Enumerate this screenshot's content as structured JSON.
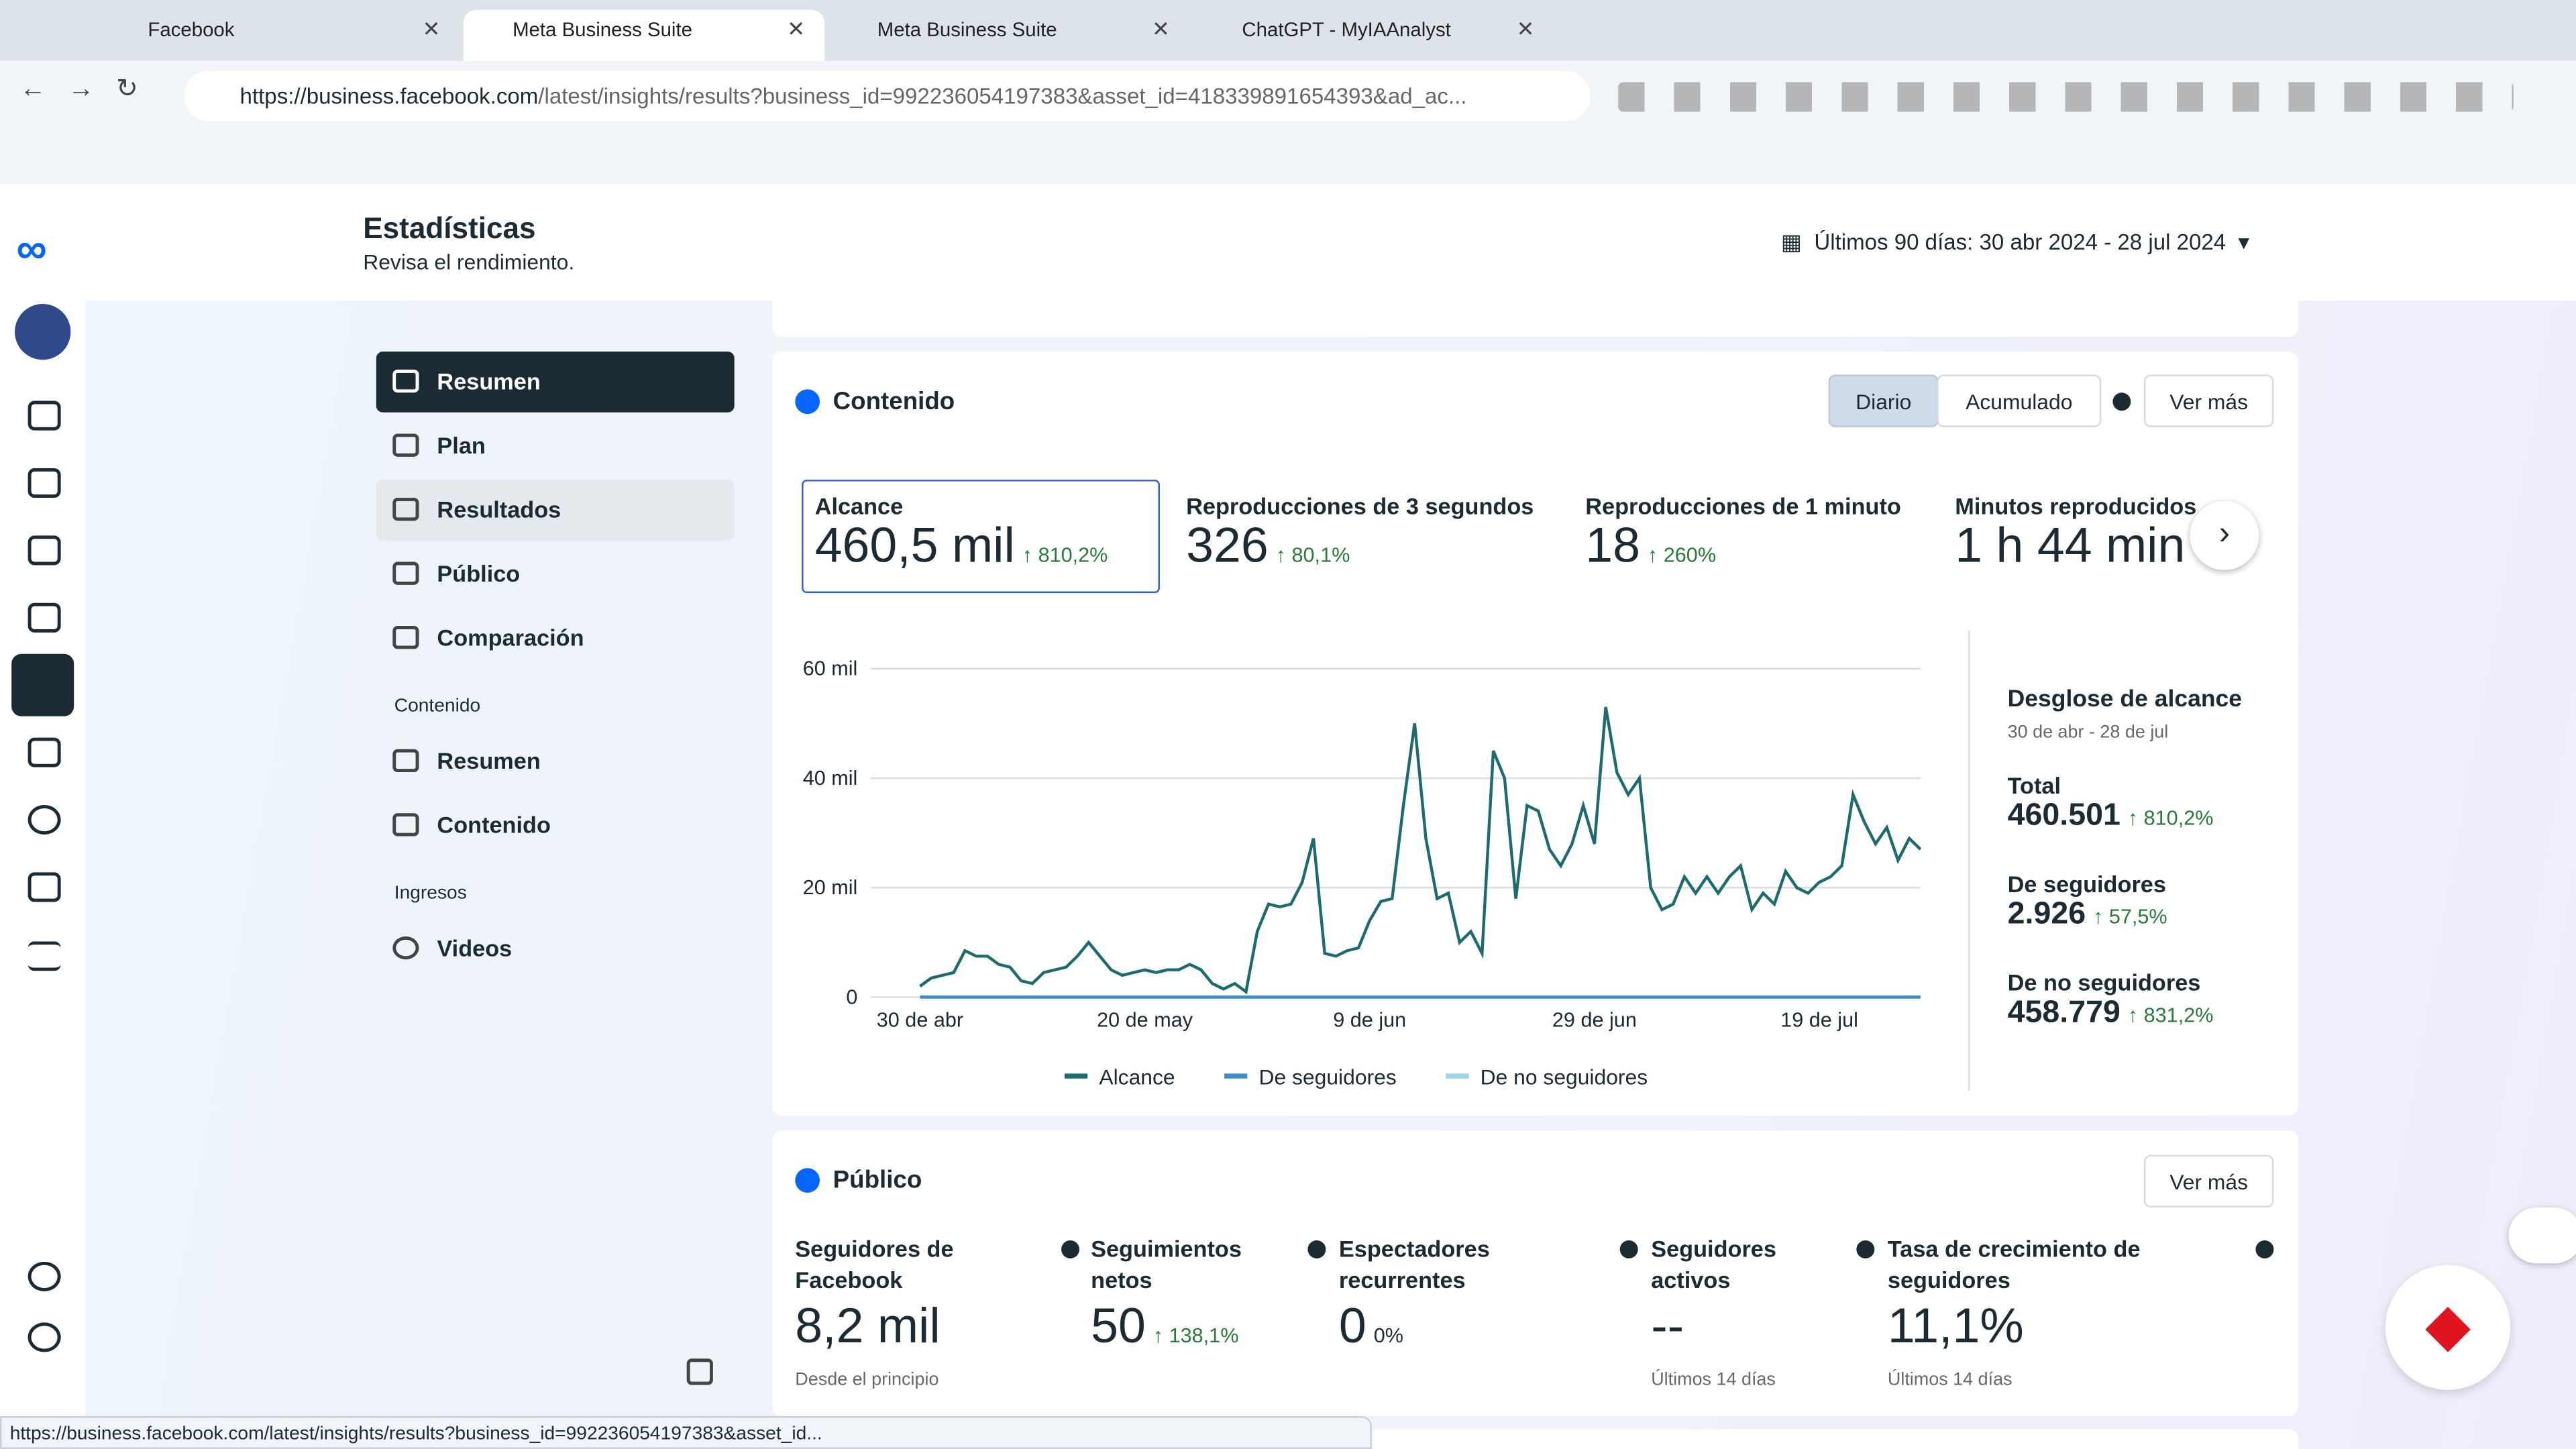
{
  "browser": {
    "tabs": [
      "Facebook",
      "Meta Business Suite",
      "Meta Business Suite",
      "ChatGPT - MyIAAnalyst"
    ],
    "url_host": "https://business.facebook.com",
    "url_path": "/latest/insights/results?business_id=992236054197383&asset_id=418339891654393&ad_ac...",
    "status_url": "https://business.facebook.com/latest/insights/results?business_id=992236054197383&asset_id..."
  },
  "header": {
    "title": "Estadísticas",
    "subtitle": "Revisa el rendimiento.",
    "date_range": "Últimos 90 días: 30 abr 2024 - 28 jul 2024"
  },
  "nav": {
    "items": [
      "Resumen",
      "Plan",
      "Resultados",
      "Público",
      "Comparación"
    ],
    "sections": [
      {
        "title": "Contenido",
        "items": [
          "Resumen",
          "Contenido"
        ]
      },
      {
        "title": "Ingresos",
        "items": [
          "Videos"
        ]
      }
    ]
  },
  "content_card": {
    "title": "Contenido",
    "toggles": [
      "Diario",
      "Acumulado"
    ],
    "more": "Ver más",
    "metrics": [
      {
        "label": "Alcance",
        "value": "460,5 mil",
        "change": "810,2%"
      },
      {
        "label": "Reproducciones de 3 segundos",
        "value": "326",
        "change": "80,1%"
      },
      {
        "label": "Reproducciones de 1 minuto",
        "value": "18",
        "change": "260%"
      },
      {
        "label": "Minutos reproducidos",
        "value": "1 h 44 min"
      }
    ],
    "breakdown": {
      "title": "Desglose de alcance",
      "subtitle": "30 de abr - 28 de jul",
      "items": [
        {
          "label": "Total",
          "value": "460.501",
          "change": "810,2%"
        },
        {
          "label": "De seguidores",
          "value": "2.926",
          "change": "57,5%"
        },
        {
          "label": "De no seguidores",
          "value": "458.779",
          "change": "831,2%"
        }
      ]
    }
  },
  "chart_data": {
    "type": "line",
    "categories": [
      "30 de abr",
      null,
      null,
      null,
      null,
      null,
      null,
      null,
      null,
      null,
      null,
      null,
      null,
      null,
      null,
      null,
      null,
      null,
      null,
      null,
      "20 de may",
      null,
      null,
      null,
      null,
      null,
      null,
      null,
      null,
      null,
      null,
      null,
      null,
      null,
      null,
      null,
      null,
      null,
      null,
      null,
      "9 de jun",
      null,
      null,
      null,
      null,
      null,
      null,
      null,
      null,
      null,
      null,
      null,
      null,
      null,
      null,
      null,
      null,
      null,
      null,
      null,
      "29 de jun",
      null,
      null,
      null,
      null,
      null,
      null,
      null,
      null,
      null,
      null,
      null,
      null,
      null,
      null,
      null,
      null,
      null,
      null,
      null,
      "19 de jul",
      null,
      null,
      null,
      null,
      null,
      null,
      null,
      null,
      null
    ],
    "series": [
      {
        "name": "Alcance",
        "color": "#1d6b6e",
        "values": [
          2000,
          3500,
          4000,
          4500,
          8500,
          7500,
          7500,
          6000,
          5500,
          3000,
          2500,
          4500,
          5000,
          5500,
          7500,
          10000,
          7500,
          5000,
          4000,
          4500,
          5000,
          4500,
          5000,
          5000,
          6000,
          5000,
          2500,
          1500,
          2500,
          1000,
          12000,
          17000,
          16500,
          17000,
          21000,
          29000,
          8000,
          7500,
          8500,
          9000,
          14000,
          17500,
          18000,
          35000,
          50000,
          29000,
          18000,
          19000,
          10000,
          12000,
          8000,
          45000,
          40000,
          18000,
          35000,
          34000,
          27000,
          24000,
          28000,
          35000,
          28000,
          53000,
          41000,
          37000,
          40000,
          20000,
          16000,
          17000,
          22000,
          19000,
          22000,
          19000,
          22000,
          24000,
          16000,
          19000,
          17000,
          23000,
          20000,
          19000,
          21000,
          22000,
          24000,
          37000,
          32000,
          28000,
          31000,
          25000,
          29000,
          27000
        ]
      },
      {
        "name": "De seguidores",
        "color": "#3b8fc6",
        "values": [
          30,
          30,
          30,
          30,
          30,
          30,
          30,
          30,
          30,
          30,
          30,
          30,
          30,
          30,
          30,
          30,
          30,
          30,
          30,
          30,
          30,
          30,
          30,
          30,
          30,
          30,
          30,
          30,
          30,
          30,
          30,
          30,
          30,
          30,
          30,
          30,
          30,
          30,
          30,
          30,
          30,
          30,
          30,
          30,
          30,
          30,
          30,
          30,
          30,
          30,
          30,
          30,
          30,
          30,
          30,
          30,
          30,
          30,
          30,
          30,
          30,
          30,
          30,
          30,
          30,
          30,
          30,
          30,
          30,
          30,
          30,
          30,
          30,
          30,
          30,
          30,
          30,
          30,
          30,
          30,
          30,
          30,
          30,
          30,
          30,
          30,
          30,
          30,
          30,
          30
        ]
      },
      {
        "name": "De no seguidores",
        "color": "#9fd4ea",
        "values": [
          null,
          null,
          null,
          null,
          null,
          null,
          null,
          null,
          null,
          null,
          null,
          null,
          null,
          null,
          null,
          null,
          null,
          null,
          null,
          null,
          null,
          null,
          null,
          null,
          null,
          null,
          null,
          null,
          null,
          null,
          null,
          null,
          null,
          null,
          null,
          null,
          null,
          null,
          null,
          null,
          null,
          null,
          null,
          null,
          null,
          null,
          null,
          null,
          null,
          null,
          null,
          null,
          null,
          null,
          null,
          null,
          null,
          null,
          null,
          null,
          null,
          null,
          null,
          null,
          null,
          null,
          null,
          null,
          null,
          null,
          null,
          null,
          null,
          null,
          null,
          null,
          null,
          null,
          null,
          null,
          null,
          null,
          null,
          null,
          null,
          null,
          null,
          null,
          null,
          null
        ]
      }
    ],
    "ylim": [
      0,
      60000
    ],
    "yticks": [
      0,
      {
        "value": 20000,
        "label": "20 mil"
      },
      {
        "value": 40000,
        "label": "40 mil"
      },
      {
        "value": 60000,
        "label": "60 mil"
      }
    ],
    "grid": true
  },
  "public_card": {
    "title": "Público",
    "more": "Ver más",
    "metrics": [
      {
        "label": "Seguidores de Facebook",
        "value": "8,2 mil",
        "note": "Desde el principio"
      },
      {
        "label": "Seguimientos netos",
        "value": "50",
        "change": "138,1%"
      },
      {
        "label": "Espectadores recurrentes",
        "value": "0",
        "change": "0%"
      },
      {
        "label": "Seguidores activos",
        "value": "--",
        "note": "Últimos 14 días"
      },
      {
        "label": "Tasa de crecimiento de seguidores",
        "value": "11,1%",
        "note": "Últimos 14 días"
      }
    ]
  }
}
